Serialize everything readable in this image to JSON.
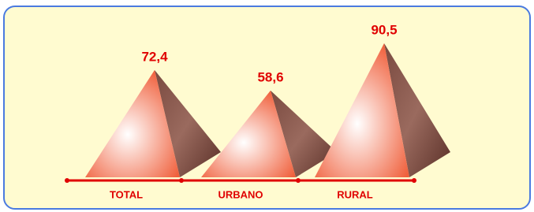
{
  "chart_data": {
    "type": "pyramid",
    "categories": [
      "TOTAL",
      "URBANO",
      "RURAL"
    ],
    "values": [
      72.4,
      58.6,
      90.5
    ],
    "value_labels": [
      "72,4",
      "58,6",
      "90,5"
    ],
    "color": "#f0603c"
  }
}
